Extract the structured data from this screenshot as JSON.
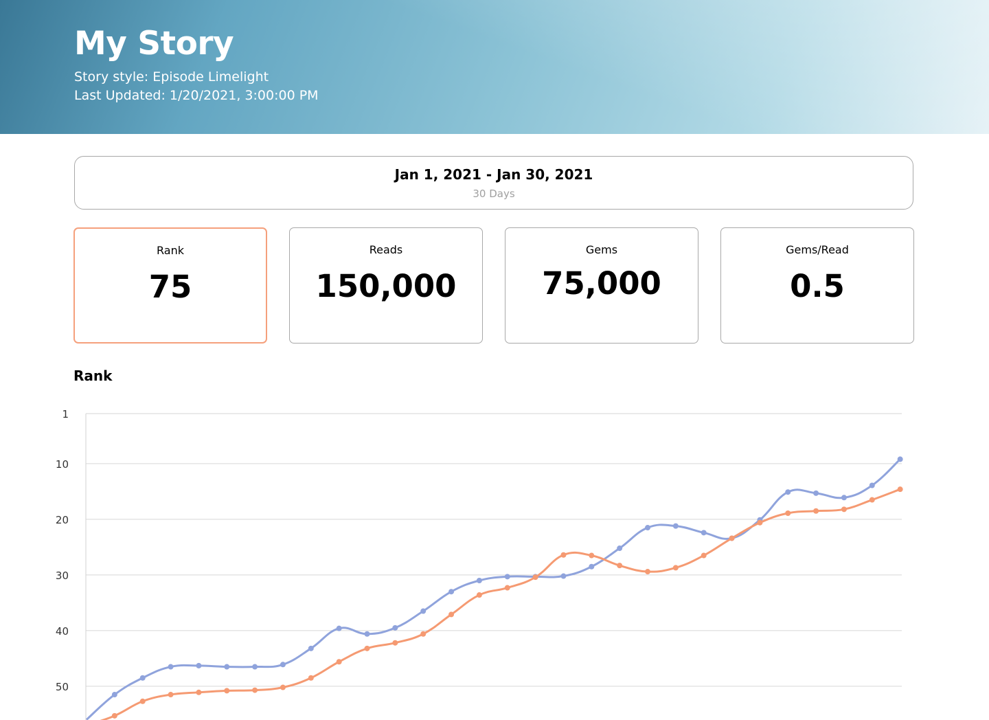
{
  "header": {
    "title": "My Story",
    "style_line": "Story style: Episode Limelight",
    "updated_line": "Last Updated: 1/20/2021, 3:00:00 PM"
  },
  "date_range": {
    "range": "Jan 1, 2021 - Jan 30, 2021",
    "days": "30 Days"
  },
  "metrics": [
    {
      "label": "Rank",
      "value": "75",
      "active": true
    },
    {
      "label": "Reads",
      "value": "150,000",
      "active": false
    },
    {
      "label": "Gems",
      "value": "75,000",
      "active": false
    },
    {
      "label": "Gems/Read",
      "value": "0.5",
      "active": false
    }
  ],
  "chart_heading": "Rank",
  "colors": {
    "active_border": "#f5a07c",
    "series_blue": "#8fa3dc",
    "series_orange": "#f59a72",
    "gridline": "#d6d6d6"
  },
  "chart_data": {
    "type": "line",
    "title": "Rank",
    "y_reversed": true,
    "ylim": [
      1,
      56
    ],
    "yticks": [
      1,
      10,
      20,
      30,
      40,
      50
    ],
    "grid": true,
    "x": [
      1,
      2,
      3,
      4,
      5,
      6,
      7,
      8,
      9,
      10,
      11,
      12,
      13,
      14,
      15,
      16,
      17,
      18,
      19,
      20,
      21,
      22,
      23,
      24,
      25,
      26,
      27,
      28,
      29,
      30
    ],
    "series": [
      {
        "color": "#8fa3dc",
        "values": [
          56,
          51.5,
          48.5,
          46.5,
          46.3,
          46.5,
          46.5,
          46.1,
          43.2,
          39.6,
          40.6,
          39.5,
          36.5,
          33,
          31,
          30.3,
          30.3,
          30.2,
          28.5,
          25.2,
          21.5,
          21.2,
          22.4,
          23.4,
          20.1,
          15.1,
          15.3,
          16.1,
          13.9,
          9.2
        ]
      },
      {
        "color": "#f59a72",
        "values": [
          57,
          55.3,
          52.7,
          51.5,
          51.1,
          50.8,
          50.7,
          50.2,
          48.5,
          45.6,
          43.2,
          42.2,
          40.6,
          37.1,
          33.6,
          32.3,
          30.4,
          26.4,
          26.5,
          28.3,
          29.4,
          28.7,
          26.5,
          23.4,
          20.6,
          18.9,
          18.5,
          18.2,
          16.5,
          14.6
        ]
      }
    ]
  }
}
